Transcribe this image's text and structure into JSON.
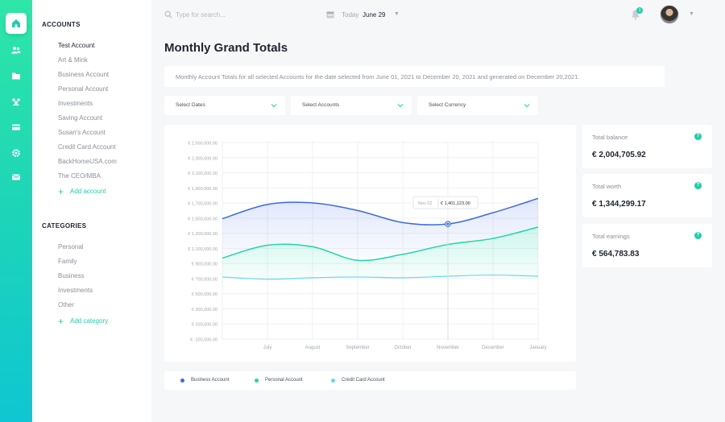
{
  "rail": {
    "icons": [
      "home-icon",
      "users-icon",
      "folder-icon",
      "groups-icon",
      "card-icon",
      "settings-icon",
      "mail-icon"
    ]
  },
  "sidebar": {
    "accounts_heading": "ACCOUNTS",
    "accounts": [
      "Test Account",
      "Art & Mink",
      "Business Account",
      "Personal Account",
      "Investments",
      "Saving Account",
      "Susan's Account",
      "Credit Card Account",
      "BackHomeUSA.com",
      "The CEO/MBA"
    ],
    "add_account": "Add account",
    "categories_heading": "CATEGORIES",
    "categories": [
      "Personal",
      "Family",
      "Business",
      "Investments",
      "Other"
    ],
    "add_category": "Add category"
  },
  "topbar": {
    "search_placeholder": "Type for search...",
    "date_prefix": "Today",
    "date_value": "June 29",
    "notification_count": "1"
  },
  "page": {
    "title": "Monthly Grand Totals",
    "description": "Monthly Account Totals for all selected Accounts for the date selected from June 01, 2021 to December 20, 2021 and generated on December 20,2021."
  },
  "filters": {
    "dates": "Select Dates",
    "accounts": "Select Accounts",
    "currency": "Select Currency"
  },
  "stats": [
    {
      "label": "Total balance",
      "value": "€ 2,004,705.92"
    },
    {
      "label": "Total worth",
      "value": "€ 1,344,299.17"
    },
    {
      "label": "Total earnings",
      "value": "€ 564,783.83"
    }
  ],
  "colors": {
    "accent": "#1fd0a8",
    "business": "#3e6ae1",
    "personal": "#1fd6a8",
    "credit": "#5fdcea"
  },
  "chart_data": {
    "type": "area",
    "x": [
      "",
      "July",
      "August",
      "September",
      "October",
      "November",
      "December",
      "January"
    ],
    "xlabels": [
      "July",
      "August",
      "September",
      "October",
      "November",
      "December",
      "January"
    ],
    "yticks": [
      "€ 2,500,000.00",
      "€ 2,300,000.00",
      "€ 2,100,000.00",
      "€ 1,900,000.00",
      "€ 1,700,000.00",
      "€ 1,500,000.00",
      "€ 1,300,000.00",
      "€ 1,100,000.00",
      "€ 900,000.00",
      "€ 700,000.00",
      "€ 500,000.00",
      "€ 300,000.00",
      "€ 100,000.00",
      "€ -100,000.00"
    ],
    "ylim": [
      -100000,
      2500000
    ],
    "grid": true,
    "series": [
      {
        "name": "Business Account",
        "values": [
          1470000,
          1660000,
          1680000,
          1580000,
          1420000,
          1401123,
          1550000,
          1740000
        ]
      },
      {
        "name": "Personal Account",
        "values": [
          950000,
          1120000,
          1100000,
          920000,
          1000000,
          1130000,
          1210000,
          1360000
        ]
      },
      {
        "name": "Credit Card Account",
        "values": [
          700000,
          670000,
          690000,
          700000,
          690000,
          710000,
          725000,
          710000
        ]
      }
    ],
    "tooltip": {
      "label": "Nov 02",
      "value": "€ 1,401,123.00",
      "series": 0,
      "index": 5
    }
  }
}
